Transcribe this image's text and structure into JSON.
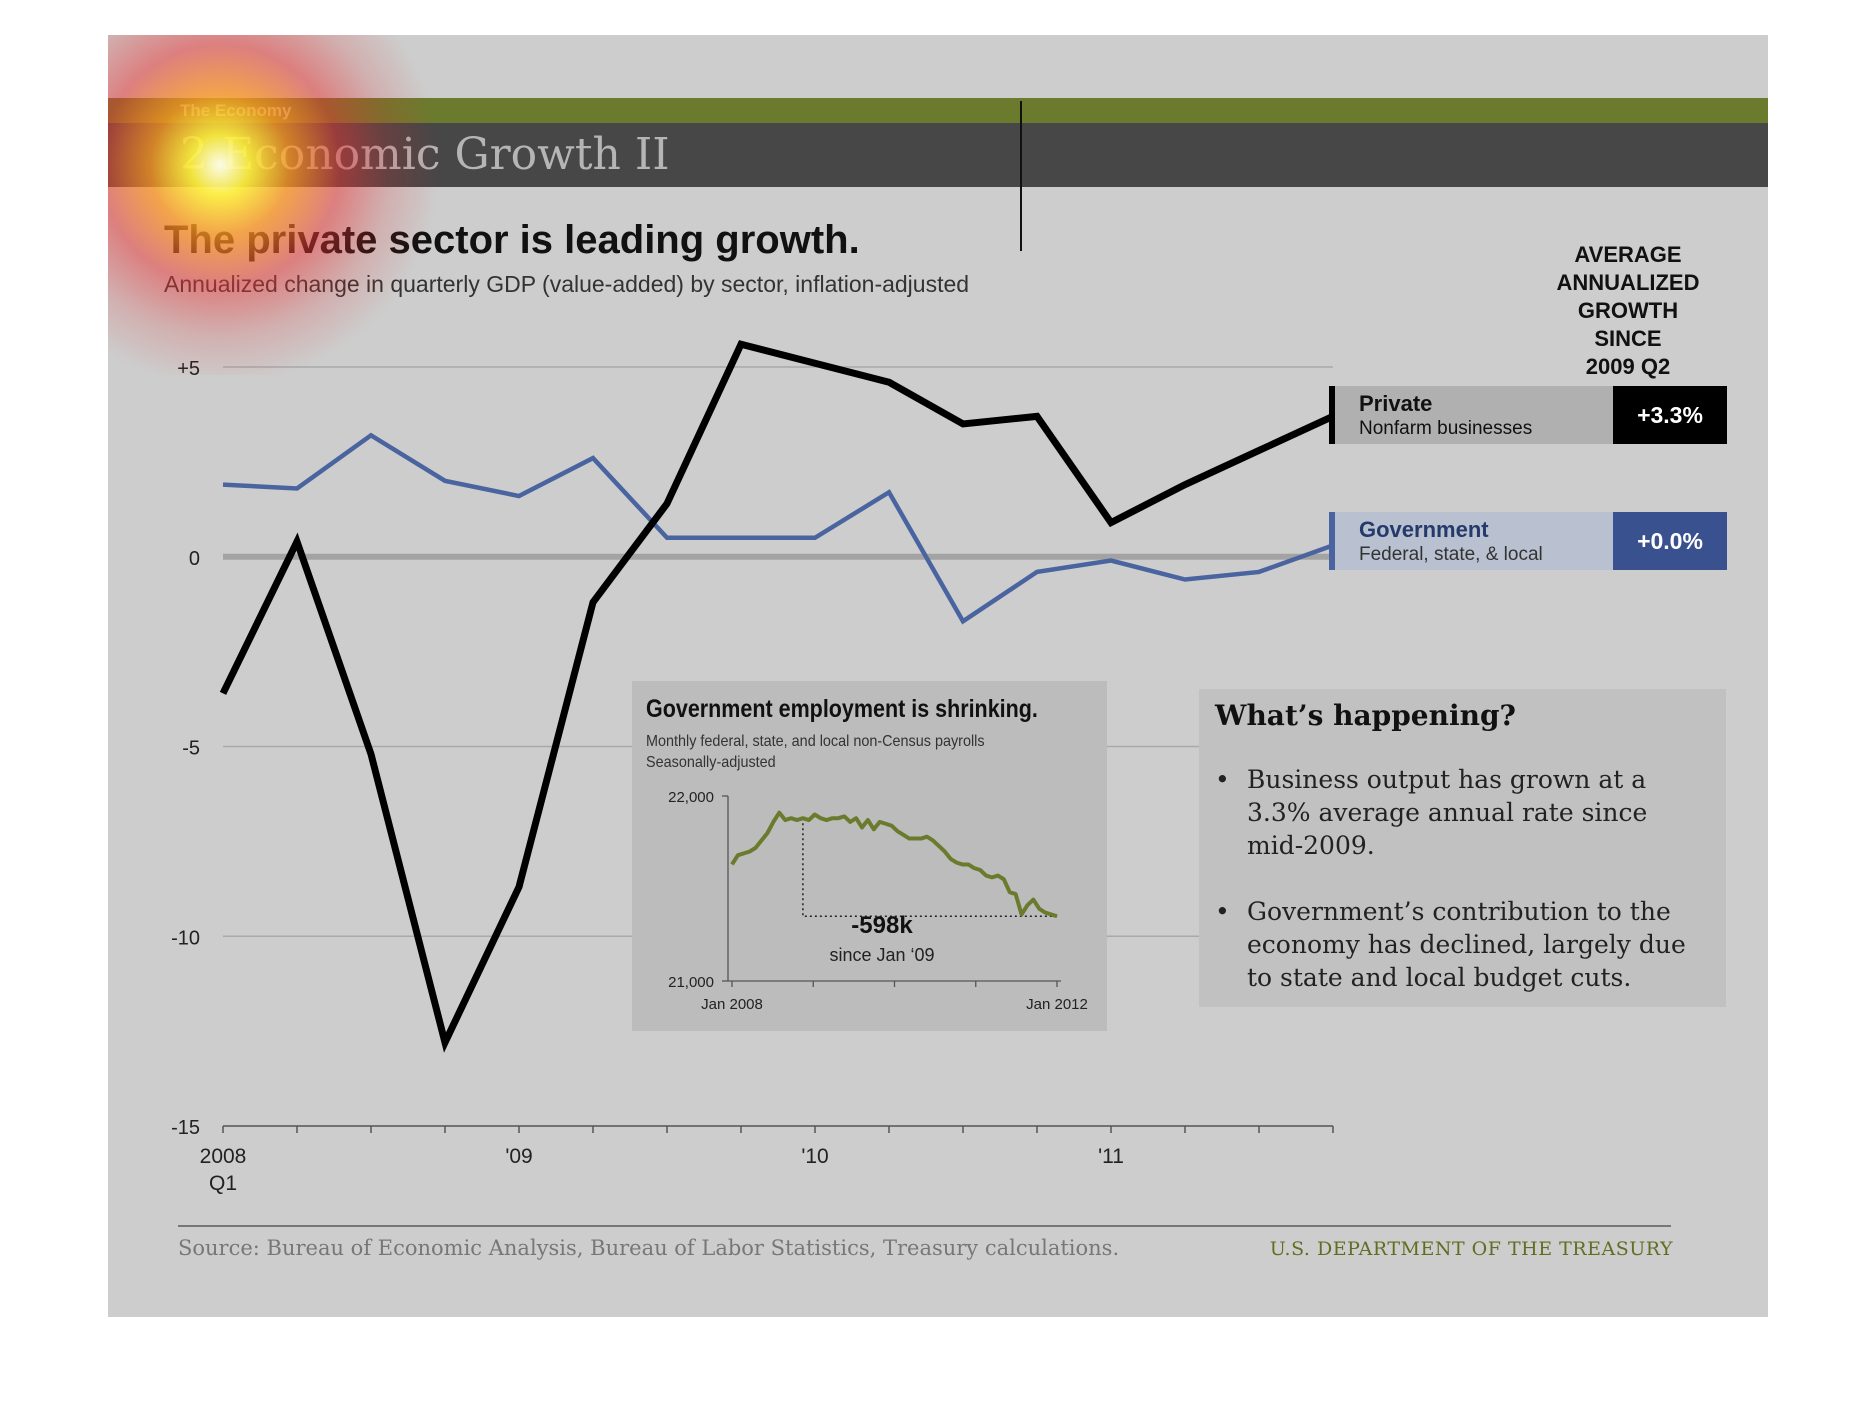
{
  "header": {
    "kicker": "The Economy",
    "section_title": "2 Economic Growth II"
  },
  "headline": "The private sector is leading growth.",
  "subhead": "Annualized change in quarterly GDP (value-added) by sector, inflation-adjusted",
  "legend": {
    "header_lines": [
      "AVERAGE",
      "ANNUALIZED",
      "GROWTH",
      "SINCE",
      "2009 Q2"
    ],
    "private": {
      "name": "Private",
      "desc": "Nonfarm businesses",
      "value": "+3.3%",
      "color": "#000000"
    },
    "government": {
      "name": "Government",
      "desc": "Federal, state, & local",
      "value": "+0.0%",
      "color": "#4a64a0"
    }
  },
  "chart_data": [
    {
      "type": "line",
      "title": "The private sector is leading growth.",
      "subtitle": "Annualized change in quarterly GDP (value-added) by sector, inflation-adjusted",
      "ylim": [
        -15,
        5
      ],
      "yticks": [
        5,
        0,
        -5,
        -10,
        -15
      ],
      "ytick_labels": [
        "+5",
        "0",
        "-5",
        "-10",
        "-15"
      ],
      "x": [
        "2008 Q1",
        "2008 Q2",
        "2008 Q3",
        "2008 Q4",
        "2009 Q1",
        "2009 Q2",
        "2009 Q3",
        "2009 Q4",
        "2010 Q1",
        "2010 Q2",
        "2010 Q3",
        "2010 Q4",
        "2011 Q1",
        "2011 Q2",
        "2011 Q3",
        "2011 Q4"
      ],
      "xtick_labels": [
        {
          "index": 0,
          "lines": [
            "2008",
            "Q1"
          ]
        },
        {
          "index": 4,
          "lines": [
            "'09"
          ]
        },
        {
          "index": 8,
          "lines": [
            "'10"
          ]
        },
        {
          "index": 12,
          "lines": [
            "'11"
          ]
        }
      ],
      "series": [
        {
          "name": "Private",
          "color": "#000000",
          "values": [
            -3.6,
            0.4,
            -5.2,
            -12.8,
            -8.7,
            -1.2,
            1.4,
            5.6,
            5.1,
            4.6,
            3.5,
            3.7,
            0.9,
            1.9,
            2.8,
            3.7
          ]
        },
        {
          "name": "Government",
          "color": "#4a64a0",
          "values": [
            1.9,
            1.8,
            3.2,
            2.0,
            1.6,
            2.6,
            0.5,
            0.5,
            0.5,
            1.7,
            -1.7,
            -0.4,
            -0.1,
            -0.6,
            -0.4,
            0.3
          ]
        }
      ],
      "grid": true,
      "zero_line": true
    },
    {
      "type": "line",
      "title": "Government employment is shrinking.",
      "subtitle_lines": [
        "Monthly federal, state, and local non-Census payrolls",
        "Seasonally-adjusted"
      ],
      "ylim": [
        21000,
        22000
      ],
      "ytick_labels": [
        "22,000",
        "21,000"
      ],
      "xtick_labels": [
        "Jan 2008",
        "Jan 2012"
      ],
      "series": [
        {
          "name": "",
          "color": "#6b7b2e",
          "values": [
            21630,
            21680,
            21690,
            21700,
            21720,
            21760,
            21800,
            21860,
            21910,
            21870,
            21880,
            21870,
            21880,
            21870,
            21900,
            21880,
            21870,
            21880,
            21880,
            21890,
            21860,
            21880,
            21830,
            21870,
            21820,
            21860,
            21850,
            21840,
            21810,
            21790,
            21770,
            21770,
            21770,
            21780,
            21760,
            21730,
            21700,
            21660,
            21640,
            21630,
            21630,
            21610,
            21600,
            21570,
            21560,
            21570,
            21550,
            21480,
            21470,
            21360,
            21410,
            21440,
            21390,
            21370,
            21360,
            21350
          ]
        }
      ],
      "annotation": {
        "value": "-598k",
        "text": "since Jan ‘09"
      }
    }
  ],
  "whats_happening": {
    "title": "What’s happening?",
    "bullets": [
      "Business output has grown at a 3.3% average annual rate since mid-2009.",
      "Government’s contribution to the economy has declined, largely due to state and local budget cuts."
    ]
  },
  "footer": {
    "source": "Source: Bureau of Economic Analysis, Bureau of Labor Statistics, Treasury calculations.",
    "agency": "U.S. DEPARTMENT OF THE TREASURY"
  }
}
